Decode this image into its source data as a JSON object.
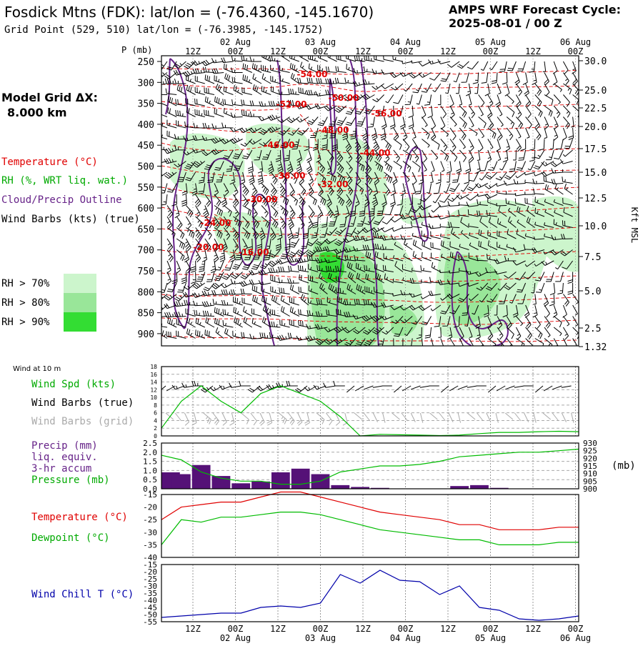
{
  "header": {
    "station": "Fosdick Mtns (FDK):  lat/lon = (-76.4360, -145.1670)",
    "grid_point": "Grid Point (529, 510) lat/lon = (-76.3985, -145.1752)",
    "cycle_title": "AMPS WRF Forecast Cycle:",
    "cycle_value": "2025-08-01 / 00  Z"
  },
  "legend": {
    "model_grid_label": "Model Grid ΔX:",
    "model_grid_value": "8.000 km",
    "temperature": "Temperature (°C)",
    "rh": "RH (%, WRT liq. wat.)",
    "cloud": "Cloud/Precip Outline",
    "wind_barbs": "Wind Barbs (kts) (true)",
    "rh70": "RH > 70%",
    "rh80": "RH > 80%",
    "rh90": "RH > 90%"
  },
  "colors": {
    "temperature": "#e00000",
    "dewpoint": "#00bb00",
    "cloud": "#662288",
    "rh70": "#ccf5cc",
    "rh80": "#99e699",
    "rh90": "#33dd33",
    "precip": "#551177",
    "windchill": "#0000aa",
    "barb_grid": "#aaaaaa"
  },
  "time_axis": {
    "top_ticks": [
      "12Z",
      "00Z",
      "12Z",
      "00Z",
      "12Z",
      "00Z",
      "12Z",
      "00Z",
      "12Z",
      "00Z"
    ],
    "dates": [
      "02 Aug",
      "03 Aug",
      "04 Aug",
      "05 Aug",
      "06 Aug"
    ],
    "bottom_ticks": [
      "12Z",
      "00Z",
      "12Z",
      "00Z",
      "12Z",
      "00Z",
      "12Z",
      "00Z",
      "12Z",
      "00Z"
    ]
  },
  "chart_data": [
    {
      "type": "heatmap",
      "title": "",
      "ylabel": "P (mb)",
      "y2label": "Kft MSL",
      "pressure_ticks": [
        "250",
        "300",
        "350",
        "400",
        "450",
        "500",
        "550",
        "600",
        "650",
        "700",
        "750",
        "800",
        "850",
        "900"
      ],
      "height_ticks": [
        "30.0",
        "25.0",
        "22.5",
        "20.0",
        "17.5",
        "15.0",
        "12.5",
        "10.0",
        "7.5",
        "5.0",
        "2.5",
        "1.32"
      ],
      "temperature_labels": [
        "-54.00",
        "-50.00",
        "-52.00",
        "-56.00",
        "-48.00",
        "-46.00",
        "-44.00",
        "-36.00",
        "-32.00",
        "-30.00",
        "-24.00",
        "-20.00",
        "-16.00"
      ]
    },
    {
      "type": "line",
      "title": "Wind at 10 m",
      "series": [
        {
          "name": "Wind Spd (kts)",
          "values": [
            2,
            9,
            13,
            9,
            6,
            11,
            13,
            11,
            9,
            5,
            0,
            0.4,
            0.3,
            0.2,
            0.1,
            0.2,
            0.6,
            0.9,
            0.9,
            1.1,
            1.2,
            1.1
          ]
        },
        {
          "name": "Wind Barbs (true)"
        },
        {
          "name": "Wind Barbs (grid)"
        }
      ],
      "ylim": [
        0,
        18
      ]
    },
    {
      "type": "bar",
      "series": [
        {
          "name": "Precip (mm) liq. equiv. 3-hr accum",
          "values": [
            0.9,
            0.8,
            1.3,
            0.7,
            0.3,
            0.4,
            0.9,
            1.1,
            0.8,
            0.2,
            0.1,
            0.05,
            0.0,
            0.0,
            0.0,
            0.15,
            0.2,
            0.05,
            0.0,
            0.0,
            0.0,
            0.0
          ]
        },
        {
          "name": "Pressure (mb)",
          "values": [
            922,
            919,
            911,
            907,
            905,
            905,
            903,
            903,
            905,
            911,
            913,
            915,
            915,
            916,
            918,
            921,
            922,
            923,
            924,
            924,
            925,
            926
          ]
        }
      ],
      "ylim": [
        0,
        2.5
      ],
      "y_ticks": [
        "2.5",
        "2.0",
        "1.5",
        "1.0",
        "0.5",
        "0.0"
      ],
      "y2lim": [
        900,
        930
      ],
      "y2_ticks": [
        "930",
        "925",
        "920",
        "915",
        "910",
        "905",
        "900"
      ],
      "y2label": "(mb)"
    },
    {
      "type": "line",
      "series": [
        {
          "name": "Temperature (°C)",
          "values": [
            -25,
            -20,
            -19,
            -18,
            -18,
            -16,
            -14,
            -14,
            -16,
            -18,
            -20,
            -22,
            -23,
            -24,
            -25,
            -27,
            -27,
            -29,
            -29,
            -29,
            -28,
            -28
          ]
        },
        {
          "name": "Dewpoint (°C)",
          "values": [
            -35,
            -25,
            -26,
            -24,
            -24,
            -23,
            -22,
            -22,
            -23,
            -25,
            -27,
            -29,
            -30,
            -31,
            -32,
            -33,
            -33,
            -35,
            -35,
            -35,
            -34,
            -34
          ]
        }
      ],
      "ylim": [
        -40,
        -15
      ],
      "y_ticks": [
        "-15",
        "-20",
        "-25",
        "-30",
        "-35",
        "-40"
      ]
    },
    {
      "type": "line",
      "series": [
        {
          "name": "Wind Chill T (°C)",
          "values": [
            -52,
            -51,
            -50,
            -49,
            -49,
            -45,
            -44,
            -45,
            -42,
            -22,
            -28,
            -19,
            -26,
            -27,
            -36,
            -30,
            -45,
            -47,
            -53,
            -54,
            -53,
            -51
          ]
        }
      ],
      "ylim": [
        -55,
        -15
      ],
      "y_ticks": [
        "-15",
        "-20",
        "-25",
        "-30",
        "-35",
        "-40",
        "-45",
        "-50",
        "-55"
      ]
    }
  ]
}
